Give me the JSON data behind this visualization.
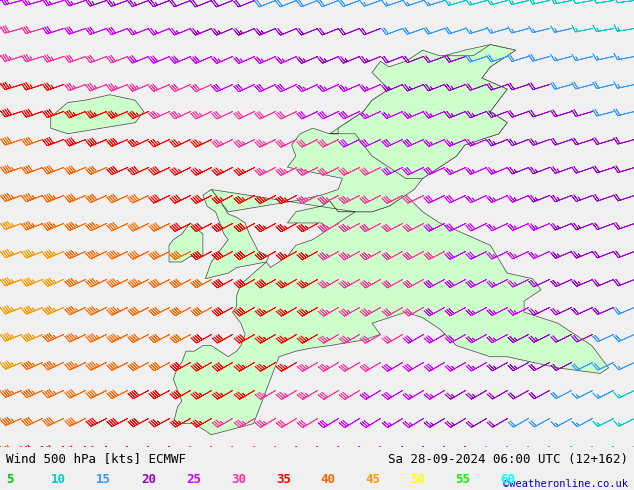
{
  "title_left": "Wind 500 hPa [kts] ECMWF",
  "title_right": "Sa 28-09-2024 06:00 UTC (12+162)",
  "credit": "©weatheronline.co.uk",
  "legend_values": [
    5,
    10,
    15,
    20,
    25,
    30,
    35,
    40,
    45,
    50,
    55,
    60
  ],
  "legend_colors": [
    "#00cc00",
    "#00cccc",
    "#3399ff",
    "#9900cc",
    "#ff00ff",
    "#ff3399",
    "#ff0000",
    "#ff6600",
    "#ffaa00",
    "#ffff00",
    "#00ff00",
    "#00ffff"
  ],
  "bg_color": "#f0f0f0",
  "land_color": "#ccffcc",
  "sea_color": "#f0f0f0",
  "fig_width": 6.34,
  "fig_height": 4.9,
  "dpi": 100,
  "title_fontsize": 9,
  "legend_fontsize": 9,
  "lon_min": -30,
  "lon_max": 45,
  "lat_min": 35,
  "lat_max": 75
}
